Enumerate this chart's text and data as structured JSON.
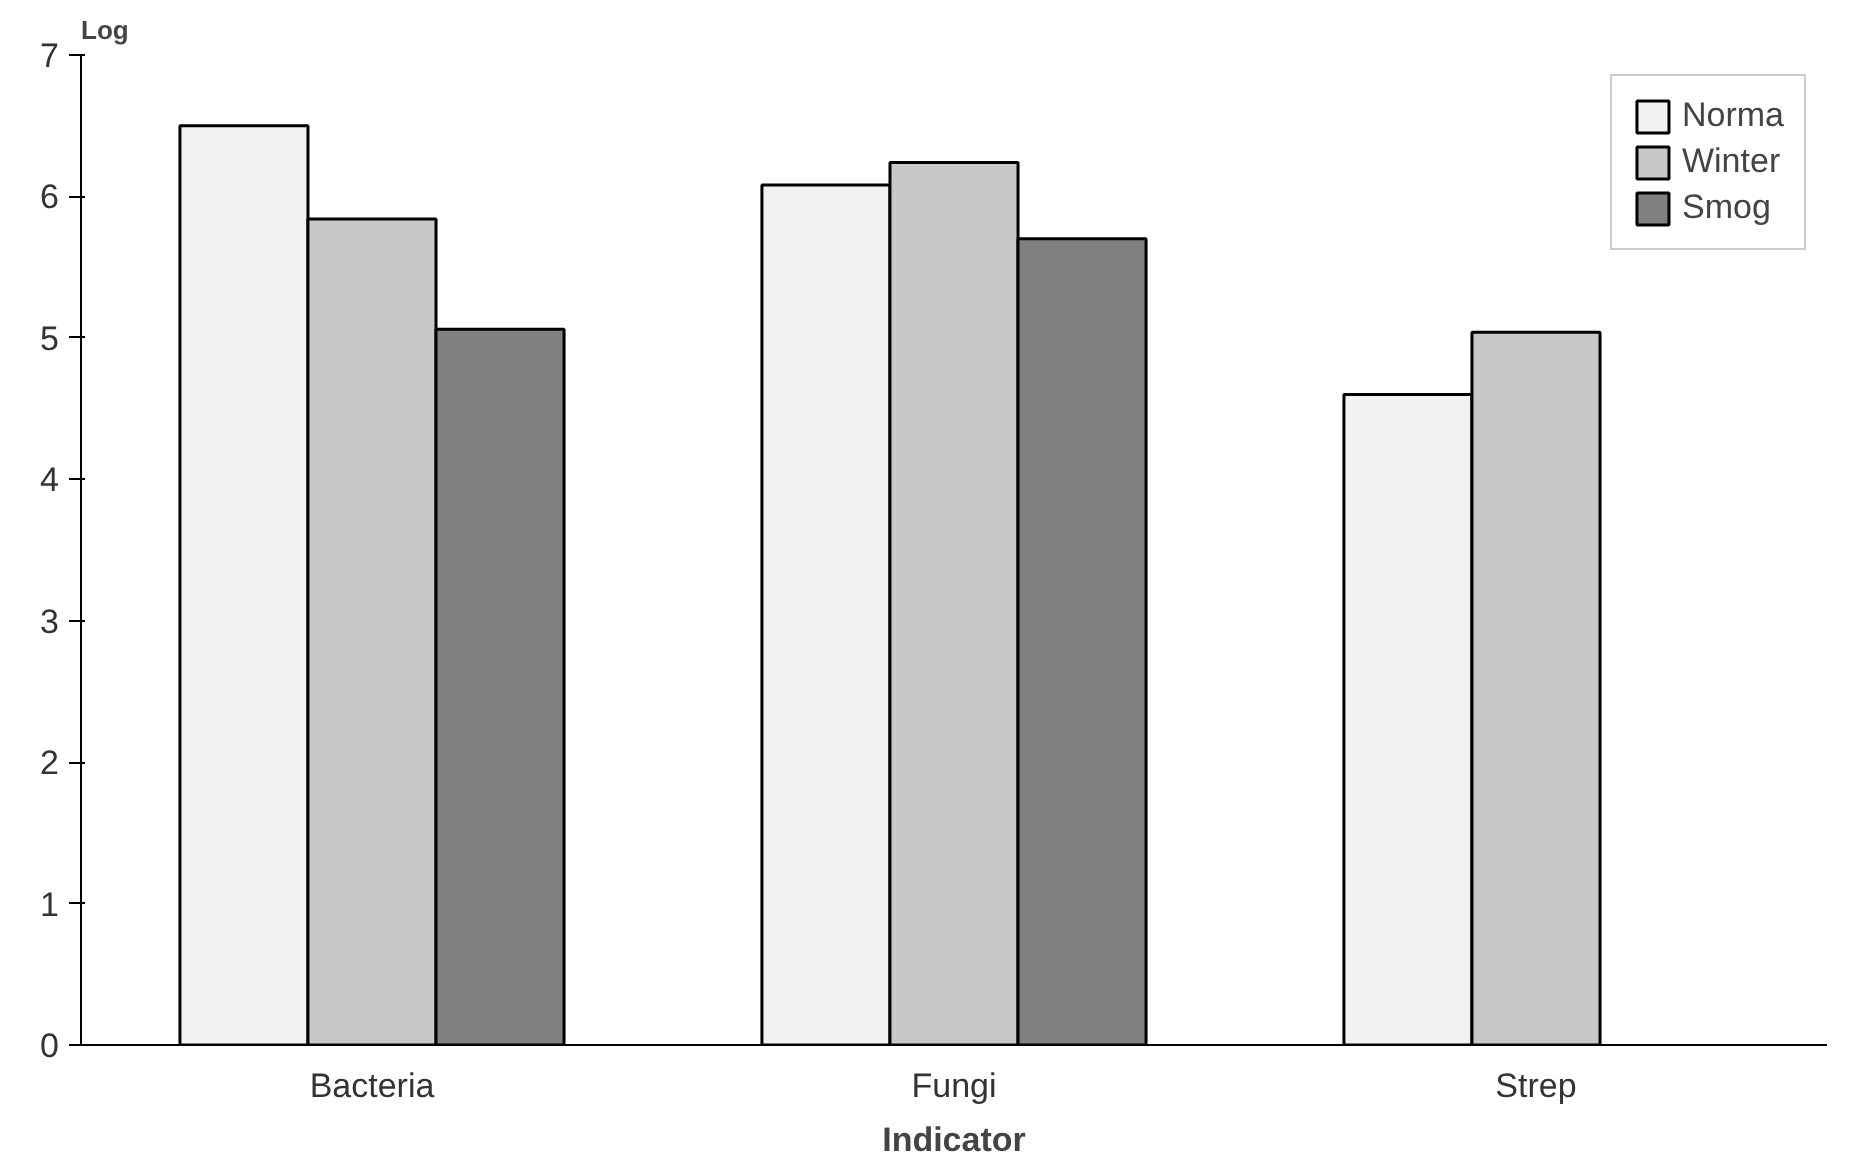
{
  "chart_data": {
    "type": "bar",
    "ylabel": "Log",
    "xlabel": "Indicator",
    "categories": [
      "Bacteria",
      "Fungi",
      "Strep"
    ],
    "series": [
      {
        "name": "Norma",
        "color": "#f2f2f2",
        "values": [
          6.5,
          6.08,
          4.6
        ]
      },
      {
        "name": "Winter",
        "color": "#c8c8c8",
        "values": [
          5.84,
          6.24,
          5.04
        ]
      },
      {
        "name": "Smog",
        "color": "#808080",
        "values": [
          5.06,
          5.7,
          null
        ]
      }
    ],
    "ylim": [
      0,
      7
    ],
    "yticks": [
      0,
      1,
      2,
      3,
      4,
      5,
      6,
      7
    ],
    "grid": false,
    "legend": "top right"
  }
}
